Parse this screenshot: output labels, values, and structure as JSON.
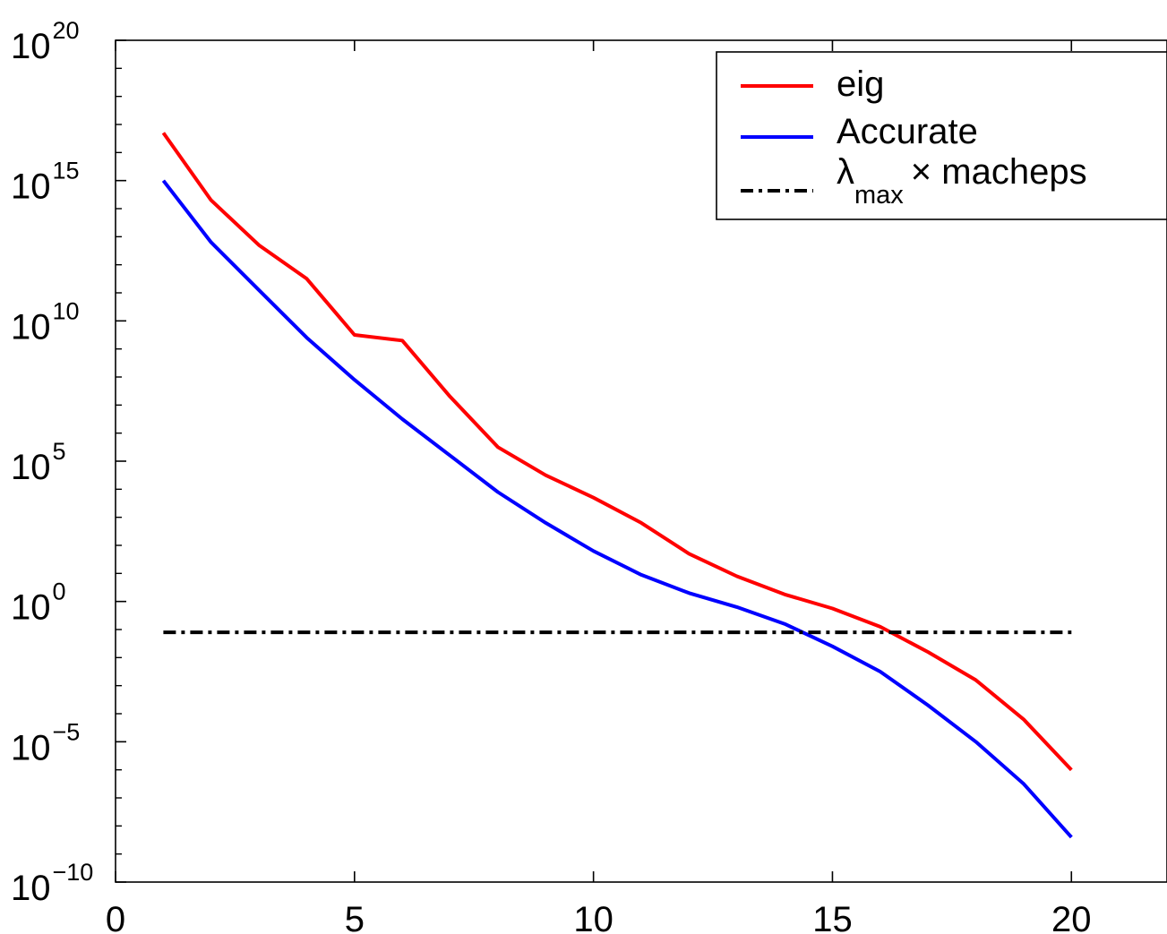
{
  "chart_data": {
    "type": "line",
    "title": "",
    "xlabel": "",
    "ylabel": "",
    "x_ticks": [
      "0",
      "5",
      "10",
      "15",
      "20"
    ],
    "y_ticks": [
      {
        "base": "10",
        "exp": "20"
      },
      {
        "base": "10",
        "exp": "15"
      },
      {
        "base": "10",
        "exp": "10"
      },
      {
        "base": "10",
        "exp": "5"
      },
      {
        "base": "10",
        "exp": "0"
      },
      {
        "base": "10",
        "exp": "−5"
      },
      {
        "base": "10",
        "exp": "−10"
      }
    ],
    "xlim": [
      0,
      22
    ],
    "ylim_log10": [
      -10,
      20
    ],
    "y_scale": "log",
    "grid": false,
    "legend_position": "top-right",
    "series": [
      {
        "name": "eig",
        "color": "#ff0000",
        "style": "solid",
        "x": [
          1,
          2,
          3,
          4,
          5,
          6,
          7,
          8,
          9,
          10,
          11,
          12,
          13,
          14,
          15,
          16,
          17,
          18,
          19,
          20
        ],
        "log10_y": [
          16.7,
          14.3,
          12.7,
          11.5,
          9.5,
          9.3,
          7.3,
          5.5,
          4.5,
          3.7,
          2.8,
          1.7,
          0.9,
          0.25,
          -0.25,
          -0.9,
          -1.8,
          -2.8,
          -4.2,
          -6.0
        ]
      },
      {
        "name": "Accurate",
        "color": "#0000ff",
        "style": "solid",
        "x": [
          1,
          2,
          3,
          4,
          5,
          6,
          7,
          8,
          9,
          10,
          11,
          12,
          13,
          14,
          15,
          16,
          17,
          18,
          19,
          20
        ],
        "log10_y": [
          15.0,
          12.8,
          11.1,
          9.4,
          7.9,
          6.5,
          5.2,
          3.9,
          2.8,
          1.8,
          0.95,
          0.3,
          -0.2,
          -0.8,
          -1.6,
          -2.5,
          -3.7,
          -5.0,
          -6.5,
          -8.4
        ]
      },
      {
        "name": "λmax × macheps",
        "color": "#000000",
        "style": "dash-dot",
        "x": [
          1,
          20
        ],
        "log10_y": [
          -1.1,
          -1.1
        ]
      }
    ],
    "legend": {
      "eig_label": "eig",
      "accurate_label": "Accurate",
      "lambda_symbol": "λ",
      "lambda_sub": "max",
      "lambda_rest": "× macheps"
    }
  }
}
